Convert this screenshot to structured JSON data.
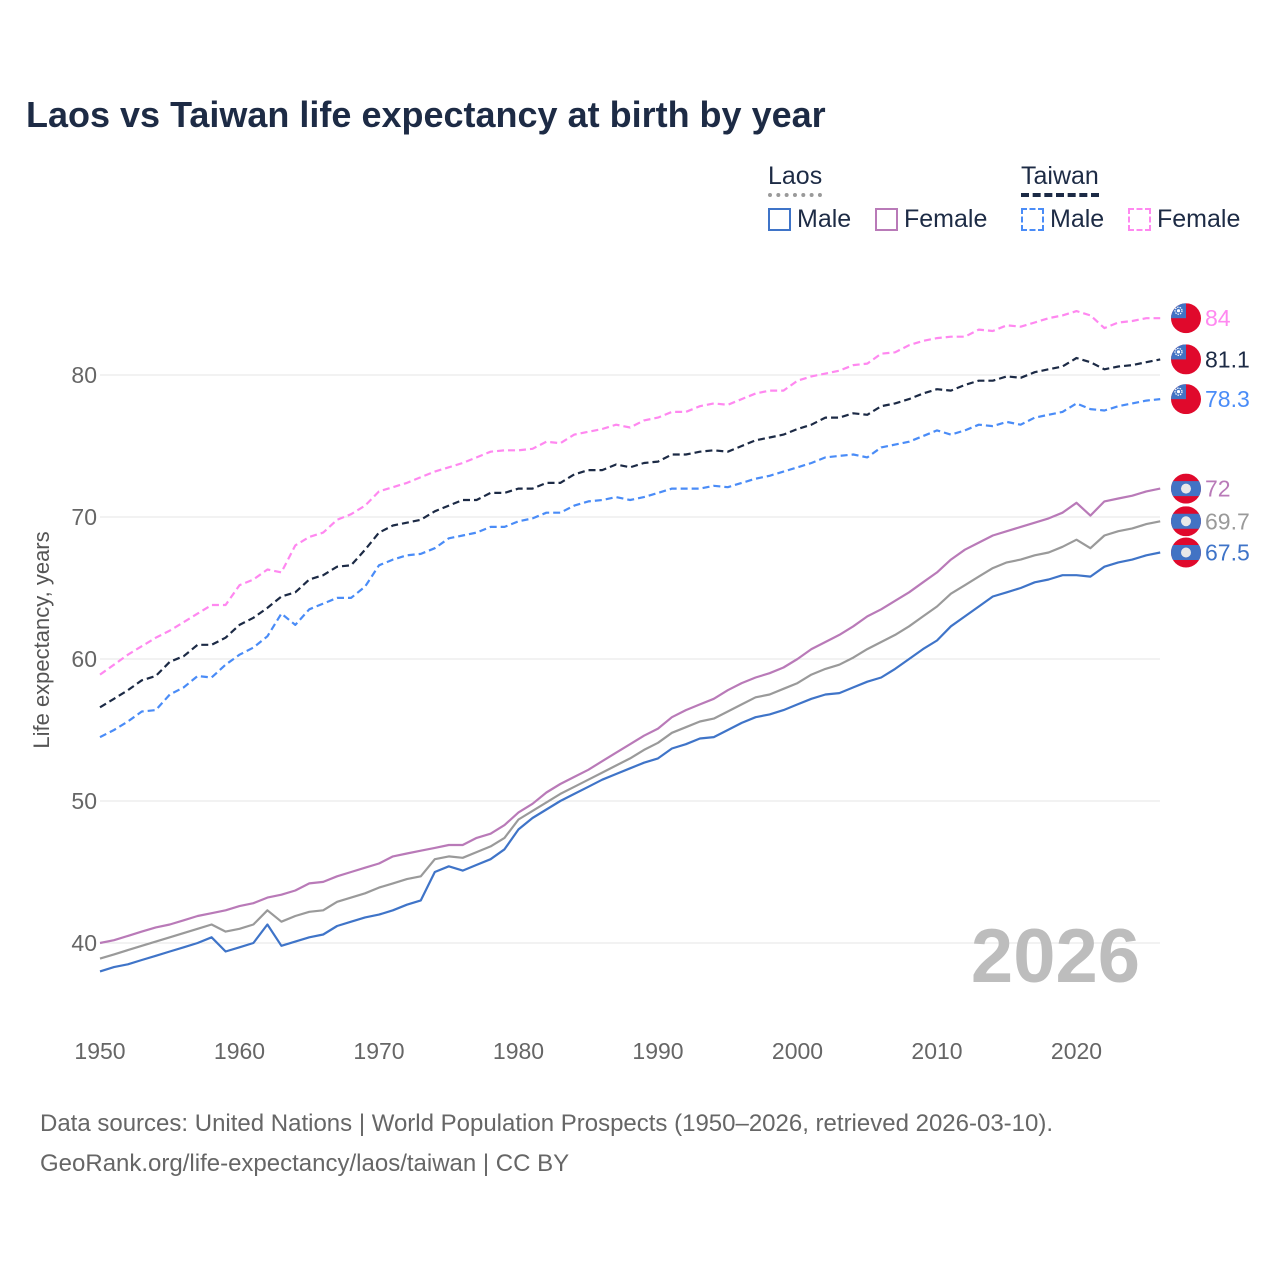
{
  "chart_data": {
    "type": "line",
    "title": "Laos vs Taiwan life expectancy at birth by year",
    "xlabel": "",
    "ylabel": "Life expectancy, years",
    "xlim": [
      1950,
      2026
    ],
    "ylim": [
      35,
      87
    ],
    "x_ticks": [
      1950,
      1960,
      1970,
      1980,
      1990,
      2000,
      2010,
      2020
    ],
    "y_ticks": [
      40,
      50,
      60,
      70,
      80
    ],
    "grid": true,
    "legend_position": "top-right",
    "legend": {
      "groups": [
        {
          "name": "Laos",
          "items": [
            "Male",
            "Female"
          ]
        },
        {
          "name": "Taiwan",
          "items": [
            "Male",
            "Female"
          ]
        }
      ]
    },
    "watermark_year": "2026",
    "x_start": 1950,
    "series": [
      {
        "name": "Taiwan Female",
        "country": "Taiwan",
        "color": "#ff88f0",
        "dashed": true,
        "end_label": "84",
        "values": [
          58.9,
          59.6,
          60.3,
          60.9,
          61.5,
          62.0,
          62.6,
          63.2,
          63.8,
          63.8,
          65.2,
          65.6,
          66.3,
          66.1,
          68.0,
          68.6,
          68.9,
          69.8,
          70.2,
          70.8,
          71.8,
          72.1,
          72.4,
          72.8,
          73.2,
          73.5,
          73.8,
          74.2,
          74.6,
          74.7,
          74.7,
          74.8,
          75.3,
          75.2,
          75.8,
          76.0,
          76.2,
          76.5,
          76.3,
          76.8,
          77.0,
          77.4,
          77.4,
          77.8,
          78.0,
          77.9,
          78.3,
          78.7,
          78.9,
          78.9,
          79.6,
          79.9,
          80.1,
          80.3,
          80.7,
          80.8,
          81.5,
          81.6,
          82.1,
          82.4,
          82.6,
          82.7,
          82.7,
          83.2,
          83.1,
          83.5,
          83.4,
          83.7,
          84.0,
          84.2,
          84.5,
          84.2,
          83.3,
          83.7,
          83.8,
          84.0,
          84.0
        ]
      },
      {
        "name": "Taiwan",
        "country": "Taiwan",
        "color": "#1c2a45",
        "dashed": true,
        "end_label": "81.1",
        "values": [
          56.6,
          57.2,
          57.8,
          58.5,
          58.8,
          59.8,
          60.2,
          61.0,
          61.0,
          61.5,
          62.4,
          62.9,
          63.6,
          64.4,
          64.7,
          65.6,
          65.9,
          66.5,
          66.6,
          67.7,
          68.9,
          69.4,
          69.6,
          69.8,
          70.4,
          70.8,
          71.2,
          71.2,
          71.7,
          71.7,
          72.0,
          72.0,
          72.4,
          72.4,
          73.0,
          73.3,
          73.3,
          73.7,
          73.5,
          73.8,
          73.9,
          74.4,
          74.4,
          74.6,
          74.7,
          74.6,
          75.0,
          75.4,
          75.6,
          75.8,
          76.2,
          76.5,
          77.0,
          77.0,
          77.3,
          77.2,
          77.8,
          78.0,
          78.3,
          78.7,
          79.0,
          78.9,
          79.3,
          79.6,
          79.6,
          79.9,
          79.8,
          80.2,
          80.4,
          80.6,
          81.2,
          80.9,
          80.4,
          80.6,
          80.7,
          80.9,
          81.1
        ]
      },
      {
        "name": "Taiwan Male",
        "country": "Taiwan",
        "color": "#4a8cf7",
        "dashed": true,
        "end_label": "78.3",
        "values": [
          54.5,
          55.0,
          55.6,
          56.3,
          56.4,
          57.5,
          58.0,
          58.8,
          58.7,
          59.6,
          60.3,
          60.8,
          61.6,
          63.2,
          62.4,
          63.5,
          63.9,
          64.3,
          64.3,
          65.1,
          66.6,
          67.0,
          67.3,
          67.4,
          67.8,
          68.5,
          68.7,
          68.9,
          69.3,
          69.3,
          69.7,
          69.9,
          70.3,
          70.3,
          70.8,
          71.1,
          71.2,
          71.4,
          71.2,
          71.4,
          71.7,
          72.0,
          72.0,
          72.0,
          72.2,
          72.1,
          72.4,
          72.7,
          72.9,
          73.2,
          73.5,
          73.8,
          74.2,
          74.3,
          74.4,
          74.2,
          74.9,
          75.1,
          75.3,
          75.7,
          76.1,
          75.8,
          76.1,
          76.5,
          76.4,
          76.7,
          76.5,
          77.0,
          77.2,
          77.4,
          78.0,
          77.6,
          77.5,
          77.8,
          78.0,
          78.2,
          78.3
        ]
      },
      {
        "name": "Laos Female",
        "country": "Laos",
        "color": "#b97ab8",
        "dashed": false,
        "end_label": "72",
        "values": [
          40.0,
          40.2,
          40.5,
          40.8,
          41.1,
          41.3,
          41.6,
          41.9,
          42.1,
          42.3,
          42.6,
          42.8,
          43.2,
          43.4,
          43.7,
          44.2,
          44.3,
          44.7,
          45.0,
          45.3,
          45.6,
          46.1,
          46.3,
          46.5,
          46.7,
          46.9,
          46.9,
          47.4,
          47.7,
          48.3,
          49.2,
          49.8,
          50.6,
          51.2,
          51.7,
          52.2,
          52.8,
          53.4,
          54.0,
          54.6,
          55.1,
          55.9,
          56.4,
          56.8,
          57.2,
          57.8,
          58.3,
          58.7,
          59.0,
          59.4,
          60.0,
          60.7,
          61.2,
          61.7,
          62.3,
          63.0,
          63.5,
          64.1,
          64.7,
          65.4,
          66.1,
          67.0,
          67.7,
          68.2,
          68.7,
          69.0,
          69.3,
          69.6,
          69.9,
          70.3,
          71.0,
          70.1,
          71.1,
          71.3,
          71.5,
          71.8,
          72.0
        ]
      },
      {
        "name": "Laos",
        "country": "Laos",
        "color": "#9a9a9a",
        "dashed": false,
        "end_label": "69.7",
        "values": [
          38.9,
          39.2,
          39.5,
          39.8,
          40.1,
          40.4,
          40.7,
          41.0,
          41.3,
          40.8,
          41.0,
          41.3,
          42.3,
          41.5,
          41.9,
          42.2,
          42.3,
          42.9,
          43.2,
          43.5,
          43.9,
          44.2,
          44.5,
          44.7,
          45.9,
          46.1,
          46.0,
          46.4,
          46.8,
          47.4,
          48.7,
          49.3,
          49.9,
          50.5,
          51.0,
          51.5,
          52.0,
          52.5,
          53.0,
          53.6,
          54.1,
          54.8,
          55.2,
          55.6,
          55.8,
          56.3,
          56.8,
          57.3,
          57.5,
          57.9,
          58.3,
          58.9,
          59.3,
          59.6,
          60.1,
          60.7,
          61.2,
          61.7,
          62.3,
          63.0,
          63.7,
          64.6,
          65.2,
          65.8,
          66.4,
          66.8,
          67.0,
          67.3,
          67.5,
          67.9,
          68.4,
          67.8,
          68.7,
          69.0,
          69.2,
          69.5,
          69.7
        ]
      },
      {
        "name": "Laos Male",
        "country": "Laos",
        "color": "#3f74c8",
        "dashed": false,
        "end_label": "67.5",
        "values": [
          38.0,
          38.3,
          38.5,
          38.8,
          39.1,
          39.4,
          39.7,
          40.0,
          40.4,
          39.4,
          39.7,
          40.0,
          41.3,
          39.8,
          40.1,
          40.4,
          40.6,
          41.2,
          41.5,
          41.8,
          42.0,
          42.3,
          42.7,
          43.0,
          45.0,
          45.4,
          45.1,
          45.5,
          45.9,
          46.6,
          48.0,
          48.8,
          49.4,
          50.0,
          50.5,
          51.0,
          51.5,
          51.9,
          52.3,
          52.7,
          53.0,
          53.7,
          54.0,
          54.4,
          54.5,
          55.0,
          55.5,
          55.9,
          56.1,
          56.4,
          56.8,
          57.2,
          57.5,
          57.6,
          58.0,
          58.4,
          58.7,
          59.3,
          60.0,
          60.7,
          61.3,
          62.3,
          63.0,
          63.7,
          64.4,
          64.7,
          65.0,
          65.4,
          65.6,
          65.9,
          65.9,
          65.8,
          66.5,
          66.8,
          67.0,
          67.3,
          67.5
        ]
      }
    ]
  },
  "legend_colors": {
    "laos_group": "#9a9a9a",
    "taiwan_group": "#1c2a45"
  },
  "footer": {
    "line1": "Data sources: United Nations | World Population Prospects (1950–2026, retrieved 2026-03-10).",
    "line2": "GeoRank.org/life-expectancy/laos/taiwan | CC BY"
  }
}
